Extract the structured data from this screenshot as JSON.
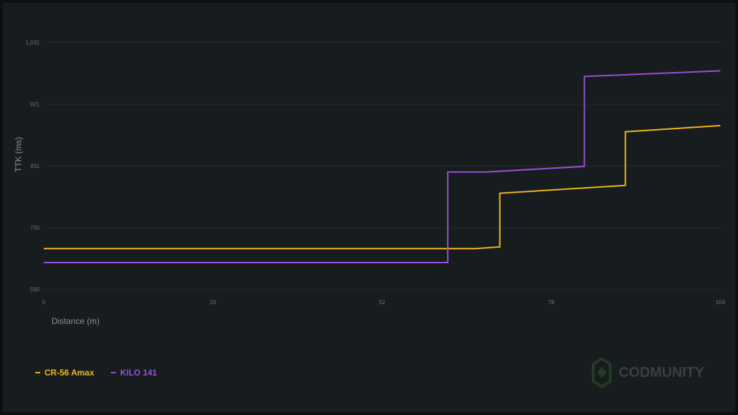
{
  "chart_data": {
    "type": "line",
    "xlabel": "Distance (m)",
    "ylabel": "TTK (ms)",
    "xlim": [
      0,
      104
    ],
    "ylim": [
      590,
      1032
    ],
    "xticks": [
      "0",
      "26",
      "52",
      "78",
      "104"
    ],
    "yticks": [
      "1,032",
      "921",
      "811",
      "700",
      "590"
    ],
    "grid": true,
    "legend_placement": "bottom-left",
    "series": [
      {
        "name": "CR-56 Amax",
        "color": "#f0b71c",
        "points": [
          [
            0,
            663
          ],
          [
            66.3,
            663
          ],
          [
            70.1,
            666
          ],
          [
            70.1,
            762
          ],
          [
            89.4,
            776
          ],
          [
            89.4,
            872
          ],
          [
            104,
            883
          ]
        ]
      },
      {
        "name": "KILO 141",
        "color": "#9a4fd6",
        "points": [
          [
            0,
            638
          ],
          [
            62.1,
            638
          ],
          [
            62.1,
            800
          ],
          [
            67.9,
            800
          ],
          [
            83.1,
            810
          ],
          [
            83.1,
            971
          ],
          [
            104,
            981
          ]
        ]
      }
    ]
  },
  "watermark": {
    "text": "CODMUNITY",
    "icon": "codmunity-hexagon-logo"
  }
}
